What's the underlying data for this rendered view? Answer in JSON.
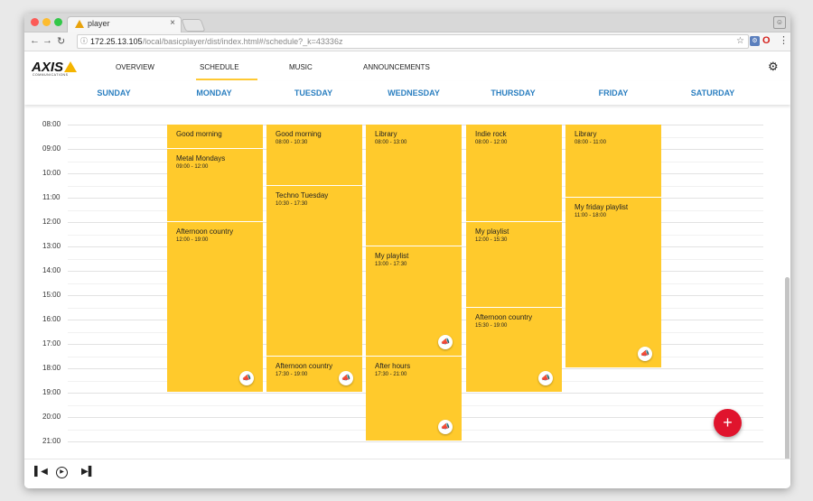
{
  "browser": {
    "tab_title": "player",
    "tab_close": "×",
    "url_host": "172.25.13.105",
    "url_path": "/local/basicplayer/dist/index.html#/schedule?_k=43336z"
  },
  "app": {
    "logo": "AXIS",
    "logo_sub": "COMMUNICATIONS",
    "nav": [
      {
        "label": "OVERVIEW"
      },
      {
        "label": "SCHEDULE",
        "active": true
      },
      {
        "label": "MUSIC"
      },
      {
        "label": "ANNOUNCEMENTS"
      }
    ],
    "accent_color": "#ffc933",
    "fab_color": "#e0142d"
  },
  "days": [
    "SUNDAY",
    "MONDAY",
    "TUESDAY",
    "WEDNESDAY",
    "THURSDAY",
    "FRIDAY",
    "SATURDAY"
  ],
  "hours": [
    "08:00",
    "09:00",
    "10:00",
    "11:00",
    "12:00",
    "13:00",
    "14:00",
    "15:00",
    "16:00",
    "17:00",
    "18:00",
    "19:00",
    "20:00",
    "21:00"
  ],
  "events": [
    {
      "day": 1,
      "start": 8.0,
      "end": 9.0,
      "title": "Good morning",
      "time": "",
      "speaker": false
    },
    {
      "day": 1,
      "start": 9.0,
      "end": 12.0,
      "title": "Metal Mondays",
      "time": "09:00 - 12:00",
      "speaker": false
    },
    {
      "day": 1,
      "start": 12.0,
      "end": 19.0,
      "title": "Afternoon country",
      "time": "12:00 - 19:00",
      "speaker": true
    },
    {
      "day": 2,
      "start": 8.0,
      "end": 10.5,
      "title": "Good morning",
      "time": "08:00 - 10:30",
      "speaker": false
    },
    {
      "day": 2,
      "start": 10.5,
      "end": 17.5,
      "title": "Techno Tuesday",
      "time": "10:30 - 17:30",
      "speaker": false
    },
    {
      "day": 2,
      "start": 17.5,
      "end": 19.0,
      "title": "Afternoon country",
      "time": "17:30 - 19:00",
      "speaker": true
    },
    {
      "day": 3,
      "start": 8.0,
      "end": 13.0,
      "title": "Library",
      "time": "08:00 - 13:00",
      "speaker": false
    },
    {
      "day": 3,
      "start": 13.0,
      "end": 17.5,
      "title": "My playlist",
      "time": "13:00 - 17:30",
      "speaker": true
    },
    {
      "day": 3,
      "start": 17.5,
      "end": 21.0,
      "title": "After hours",
      "time": "17:30 - 21:00",
      "speaker": true
    },
    {
      "day": 4,
      "start": 8.0,
      "end": 12.0,
      "title": "Indie rock",
      "time": "08:00 - 12:00",
      "speaker": false
    },
    {
      "day": 4,
      "start": 12.0,
      "end": 15.5,
      "title": "My playlist",
      "time": "12:00 - 15:30",
      "speaker": false
    },
    {
      "day": 4,
      "start": 15.5,
      "end": 19.0,
      "title": "Afternoon country",
      "time": "15:30 - 19:00",
      "speaker": true
    },
    {
      "day": 5,
      "start": 8.0,
      "end": 11.0,
      "title": "Library",
      "time": "08:00 - 11:00",
      "speaker": false
    },
    {
      "day": 5,
      "start": 11.0,
      "end": 18.0,
      "title": "My friday playlist",
      "time": "11:00 - 18:00",
      "speaker": true
    }
  ],
  "fab_label": "+",
  "player": {
    "prev": "⏮",
    "play": "▶",
    "next": "⏭"
  }
}
